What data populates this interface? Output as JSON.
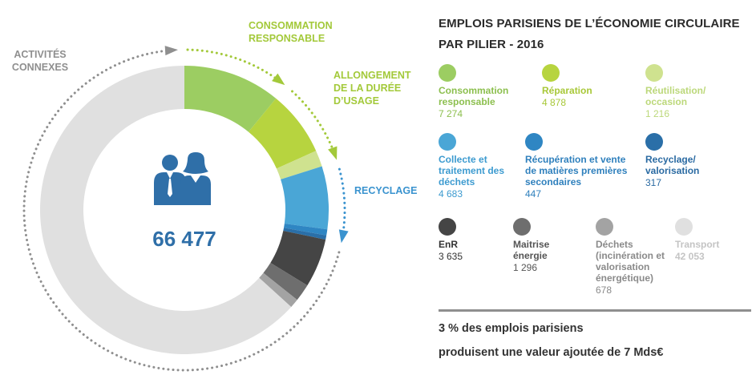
{
  "title": {
    "line1": "EMPLOIS PARISIENS DE L’ÉCONOMIE CIRCULAIRE",
    "line2": "PAR PILIER - 2016"
  },
  "center": {
    "total": "66 477",
    "icon": "people-icon"
  },
  "pillar_labels": {
    "conso": "CONSOMMATION RESPONSABLE",
    "allongement": "ALLONGEMENT DE LA DURÉE D’USAGE",
    "recyclage": "RECYCLAGE",
    "connexes": "ACTIVITÉS CONNEXES"
  },
  "colors": {
    "green_dark": "#9ccd62",
    "green_mid": "#b7d43f",
    "green_light": "#cfe28f",
    "blue_light": "#4aa6d6",
    "blue_mid": "#2f86c3",
    "blue_dark": "#2a6fa8",
    "gray_darkest": "#454545",
    "gray_dark": "#6e6e6e",
    "gray_mid": "#a3a3a3",
    "gray_light": "#e0e0e0",
    "pillar_green": "#a3c93a",
    "pillar_blue": "#3a93cf",
    "pillar_gray": "#8f8f8f"
  },
  "chart_data": {
    "type": "pie",
    "title": "EMPLOIS PARISIENS DE L’ÉCONOMIE CIRCULAIRE PAR PILIER - 2016",
    "total": 66477,
    "series": [
      {
        "name": "Consommation responsable",
        "value": 7274,
        "display": "7 274",
        "color": "#9ccd62",
        "text_color": "#8cbf4e"
      },
      {
        "name": "Réparation",
        "value": 4878,
        "display": "4 878",
        "color": "#b7d43f",
        "text_color": "#a8c838"
      },
      {
        "name": "Réutilisation/ occasion",
        "value": 1216,
        "display": "1 216",
        "color": "#cfe28f",
        "text_color": "#bcd87a"
      },
      {
        "name": "Collecte et traitement des déchets",
        "value": 4683,
        "display": "4 683",
        "color": "#4aa6d6",
        "text_color": "#3d9bd0"
      },
      {
        "name": "Récupération et vente de matières premières secondaires",
        "value": 447,
        "display": "447",
        "color": "#2f86c3",
        "text_color": "#2f80bd"
      },
      {
        "name": "Recyclage/ valorisation",
        "value": 317,
        "display": "317",
        "color": "#2a6fa8",
        "text_color": "#2a6aa2"
      },
      {
        "name": "EnR",
        "value": 3635,
        "display": "3 635",
        "color": "#454545",
        "text_color": "#333333"
      },
      {
        "name": "Maitrise énergie",
        "value": 1296,
        "display": "1 296",
        "color": "#6e6e6e",
        "text_color": "#555555"
      },
      {
        "name": "Déchets (incinération et valorisation énergétique)",
        "value": 678,
        "display": "678",
        "color": "#a3a3a3",
        "text_color": "#8a8a8a"
      },
      {
        "name": "Transport",
        "value": 42053,
        "display": "42 053",
        "color": "#e0e0e0",
        "text_color": "#c4c4c4"
      }
    ]
  },
  "footer": {
    "line1": "3 % des emplois parisiens",
    "line2": "produisent une valeur ajoutée de 7 Mds€"
  }
}
